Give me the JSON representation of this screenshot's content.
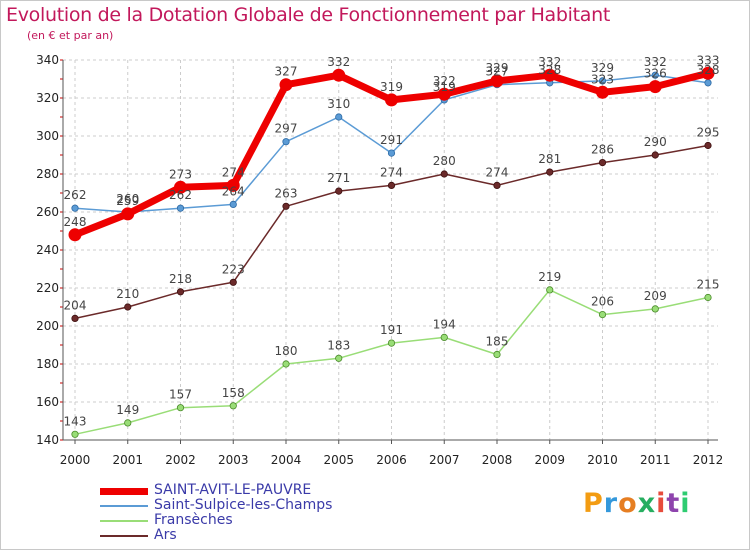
{
  "title": "Evolution de la Dotation Globale de Fonctionnement par Habitant",
  "subtitle": "(en € et par an)",
  "logo": {
    "text": "Proxiti",
    "colors": [
      "#f39c12",
      "#3498db",
      "#e67e22",
      "#27ae60",
      "#e74c3c",
      "#8e44ad",
      "#2ecc71"
    ]
  },
  "chart_data": {
    "type": "line",
    "title": "Evolution de la Dotation Globale de Fonctionnement par Habitant",
    "ylabel": "(en € et par an)",
    "xlabel": "",
    "categories": [
      "2000",
      "2001",
      "2002",
      "2003",
      "2004",
      "2005",
      "2006",
      "2007",
      "2008",
      "2009",
      "2010",
      "2011",
      "2012"
    ],
    "ylim": [
      140,
      340
    ],
    "yticks": [
      140,
      160,
      180,
      200,
      220,
      240,
      260,
      280,
      300,
      320,
      340
    ],
    "grid": true,
    "legend_position": "bottom-left",
    "series": [
      {
        "name": "SAINT-AVIT-LE-PAUVRE",
        "color": "#ee0000",
        "width": 7,
        "values": [
          248,
          259,
          273,
          274,
          327,
          332,
          319,
          322,
          329,
          332,
          323,
          326,
          333
        ],
        "labels": [
          "248",
          "259",
          "273",
          "274",
          "327",
          "332",
          "319",
          "322",
          "329",
          "332",
          "323",
          "326",
          "333"
        ]
      },
      {
        "name": "Saint-Sulpice-les-Champs",
        "color": "#5b9bd5",
        "width": 1.5,
        "values": [
          262,
          260,
          262,
          264,
          297,
          310,
          291,
          319,
          327,
          328,
          329,
          332,
          328
        ],
        "labels": [
          "262",
          "260",
          "262",
          "264",
          "297",
          "310",
          "291",
          "319",
          "327",
          "328",
          "329",
          "332",
          "328"
        ]
      },
      {
        "name": "Fransèches",
        "color": "#99dd77",
        "width": 1.5,
        "values": [
          143,
          149,
          157,
          158,
          180,
          183,
          191,
          194,
          185,
          219,
          206,
          209,
          215
        ],
        "labels": [
          "143",
          "149",
          "157",
          "158",
          "180",
          "183",
          "191",
          "194",
          "185",
          "219",
          "206",
          "209",
          "215"
        ]
      },
      {
        "name": "Ars",
        "color": "#6b2a2a",
        "width": 1.5,
        "values": [
          204,
          210,
          218,
          223,
          263,
          271,
          274,
          280,
          274,
          281,
          286,
          290,
          295
        ],
        "labels": [
          "204",
          "210",
          "218",
          "223",
          "263",
          "271",
          "274",
          "280",
          "274",
          "281",
          "286",
          "290",
          "295"
        ]
      }
    ]
  }
}
